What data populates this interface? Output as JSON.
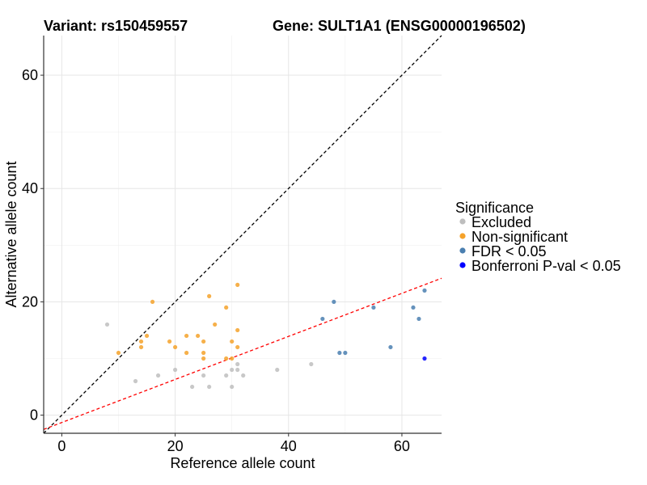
{
  "chart_data": {
    "type": "scatter",
    "title_left": "Variant: rs150459557",
    "title_right": "Gene: SULT1A1 (ENSG00000196502)",
    "xlabel": "Reference allele count",
    "ylabel": "Alternative allele count",
    "xlim": [
      -3.2,
      67
    ],
    "ylim": [
      -3.2,
      67
    ],
    "x_ticks": [
      0,
      20,
      40,
      60
    ],
    "y_ticks": [
      0,
      20,
      40,
      60
    ],
    "grid": true,
    "reference_lines": [
      {
        "name": "diagonal",
        "color": "#000000",
        "style": "dashed",
        "slope": 1,
        "intercept": 0
      },
      {
        "name": "ratio-fit",
        "color": "#ff0000",
        "style": "dashed",
        "slope": 0.38,
        "intercept": -1.3
      }
    ],
    "legend": {
      "title": "Significance",
      "position": "right",
      "entries": [
        {
          "label": "Excluded",
          "color": "#bebebe"
        },
        {
          "label": "Non-significant",
          "color": "#f5a22a"
        },
        {
          "label": "FDR < 0.05",
          "color": "#4a7fb0"
        },
        {
          "label": "Bonferroni P-val < 0.05",
          "color": "#0000ff"
        }
      ]
    },
    "series": [
      {
        "name": "Excluded",
        "color": "#bebebe",
        "points": [
          [
            8,
            16
          ],
          [
            13,
            6
          ],
          [
            17,
            7
          ],
          [
            20,
            8
          ],
          [
            23,
            5
          ],
          [
            25,
            7
          ],
          [
            26,
            5
          ],
          [
            29,
            7
          ],
          [
            30,
            8
          ],
          [
            30,
            5
          ],
          [
            31,
            9
          ],
          [
            31,
            8
          ],
          [
            32,
            7
          ],
          [
            38,
            8
          ],
          [
            44,
            9
          ]
        ]
      },
      {
        "name": "Non-significant",
        "color": "#f5a22a",
        "points": [
          [
            10,
            11
          ],
          [
            14,
            12
          ],
          [
            14,
            13
          ],
          [
            15,
            14
          ],
          [
            16,
            20
          ],
          [
            19,
            13
          ],
          [
            20,
            12
          ],
          [
            22,
            11
          ],
          [
            22,
            14
          ],
          [
            24,
            14
          ],
          [
            25,
            10
          ],
          [
            25,
            11
          ],
          [
            25,
            13
          ],
          [
            26,
            21
          ],
          [
            27,
            16
          ],
          [
            29,
            19
          ],
          [
            29,
            10
          ],
          [
            30,
            13
          ],
          [
            30,
            10
          ],
          [
            31,
            23
          ],
          [
            31,
            15
          ],
          [
            31,
            12
          ]
        ]
      },
      {
        "name": "FDR < 0.05",
        "color": "#4a7fb0",
        "points": [
          [
            46,
            17
          ],
          [
            48,
            20
          ],
          [
            49,
            11
          ],
          [
            50,
            11
          ],
          [
            55,
            19
          ],
          [
            58,
            12
          ],
          [
            62,
            19
          ],
          [
            63,
            17
          ],
          [
            64,
            22
          ]
        ]
      },
      {
        "name": "Bonferroni P-val < 0.05",
        "color": "#0000ff",
        "points": [
          [
            64,
            10
          ]
        ]
      }
    ]
  }
}
